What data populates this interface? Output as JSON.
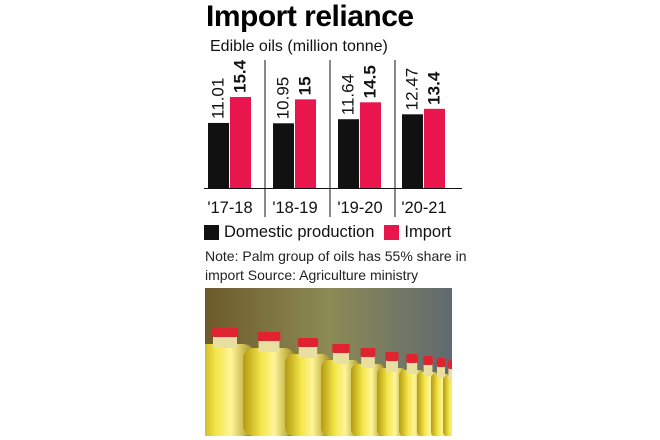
{
  "header": {
    "title": "Import reliance",
    "subtitle": "Edible oils (million tonne)"
  },
  "legend": {
    "domestic_label": "Domestic production",
    "import_label": "Import"
  },
  "note": "Note: Palm group of oils has 55% share in import Source: Agriculture ministry",
  "photo": {
    "description_icon": "oil-bottles-photo"
  },
  "colors": {
    "domestic": "#111111",
    "import": "#e8164c"
  },
  "chart_data": {
    "type": "bar",
    "categories": [
      "'17-18",
      "'18-19",
      "'19-20",
      "'20-21"
    ],
    "series": [
      {
        "name": "Domestic production",
        "values": [
          11.01,
          10.95,
          11.64,
          12.47
        ],
        "labels": [
          "11.01",
          "10.95",
          "11.64",
          "12.47"
        ]
      },
      {
        "name": "Import",
        "values": [
          15.4,
          15,
          14.5,
          13.4
        ],
        "labels": [
          "15.4",
          "15",
          "14.5",
          "13.4"
        ]
      }
    ],
    "title": "Import reliance",
    "subtitle": "Edible oils (million tonne)",
    "xlabel": "",
    "ylabel": "",
    "ylim": [
      0,
      15.4
    ],
    "grid": false,
    "legend": "bottom"
  }
}
